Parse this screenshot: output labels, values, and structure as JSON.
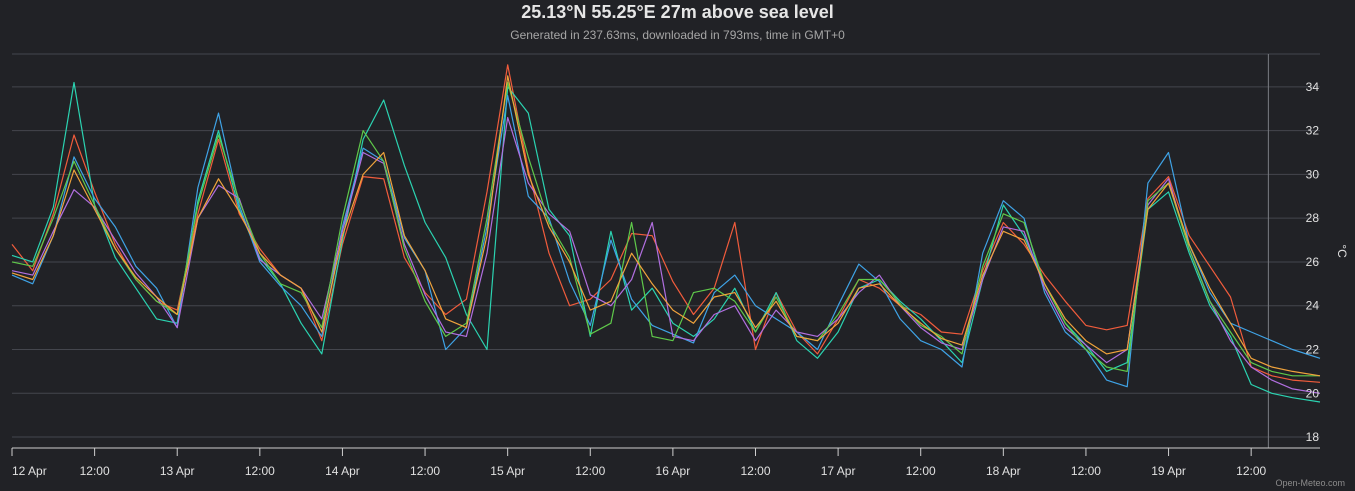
{
  "header": {
    "title": "25.13°N 55.25°E 27m above sea level",
    "subtitle": "Generated in 237.63ms, downloaded in 793ms, time in GMT+0"
  },
  "credit": "Open-Meteo.com",
  "chart_data": {
    "type": "line",
    "x_unit": "hours since 12 Apr 00:00 GMT+0",
    "x_ticks": [
      {
        "x": 0,
        "label": "12 Apr"
      },
      {
        "x": 12,
        "label": "12:00"
      },
      {
        "x": 24,
        "label": "13 Apr"
      },
      {
        "x": 36,
        "label": "12:00"
      },
      {
        "x": 48,
        "label": "14 Apr"
      },
      {
        "x": 60,
        "label": "12:00"
      },
      {
        "x": 72,
        "label": "15 Apr"
      },
      {
        "x": 84,
        "label": "12:00"
      },
      {
        "x": 96,
        "label": "16 Apr"
      },
      {
        "x": 108,
        "label": "12:00"
      },
      {
        "x": 120,
        "label": "17 Apr"
      },
      {
        "x": 132,
        "label": "12:00"
      },
      {
        "x": 144,
        "label": "18 Apr"
      },
      {
        "x": 156,
        "label": "12:00"
      },
      {
        "x": 168,
        "label": "19 Apr"
      },
      {
        "x": 180,
        "label": "12:00"
      }
    ],
    "xlim": [
      0,
      190
    ],
    "now_marker_x": 182.5,
    "yaxis": {
      "position": "right",
      "unit": "°C",
      "ticks": [
        18,
        20,
        22,
        24,
        26,
        28,
        30,
        32,
        34
      ],
      "ylim": [
        17.5,
        35.5
      ]
    },
    "grid": true,
    "legend": "none",
    "series": [
      {
        "color": "#f15c3c",
        "x": [
          0,
          3,
          6,
          9,
          12,
          15,
          18,
          21,
          24,
          27,
          30,
          33,
          36,
          39,
          42,
          45,
          48,
          51,
          54,
          57,
          60,
          63,
          66,
          69,
          72,
          75,
          78,
          81,
          84,
          87,
          90,
          93,
          96,
          99,
          102,
          105,
          108,
          111,
          114,
          117,
          120,
          123,
          126,
          129,
          132,
          135,
          138,
          141,
          144,
          147,
          150,
          153,
          156,
          159,
          162,
          165,
          168,
          171,
          174,
          177,
          180,
          183,
          186,
          190
        ],
        "y": [
          26.8,
          25.6,
          28.2,
          31.8,
          29.2,
          26.8,
          25.2,
          24.2,
          23.8,
          28.2,
          31.6,
          28.2,
          26.6,
          25.4,
          24.8,
          22.4,
          26.8,
          29.9,
          29.8,
          26.2,
          24.6,
          23.6,
          24.3,
          29.2,
          35.0,
          30.2,
          26.4,
          24.0,
          24.3,
          25.2,
          27.3,
          27.2,
          25.1,
          23.6,
          24.8,
          27.8,
          22.0,
          24.6,
          22.8,
          21.8,
          23.4,
          25.2,
          24.8,
          24.0,
          23.6,
          22.8,
          22.7,
          25.6,
          27.8,
          26.8,
          25.4,
          24.2,
          23.1,
          22.9,
          23.1,
          28.9,
          29.9,
          27.2,
          25.8,
          24.4,
          21.2,
          20.8,
          20.6,
          20.5
        ]
      },
      {
        "color": "#2bd3b1",
        "x": [
          0,
          3,
          6,
          9,
          12,
          15,
          18,
          21,
          24,
          27,
          30,
          33,
          36,
          39,
          42,
          45,
          48,
          51,
          54,
          57,
          60,
          63,
          66,
          69,
          72,
          75,
          78,
          81,
          84,
          87,
          90,
          93,
          96,
          99,
          102,
          105,
          108,
          111,
          114,
          117,
          120,
          123,
          126,
          129,
          132,
          135,
          138,
          141,
          144,
          147,
          150,
          153,
          156,
          159,
          162,
          165,
          168,
          171,
          174,
          177,
          180,
          183,
          186,
          190
        ],
        "y": [
          26.3,
          26.0,
          28.5,
          34.2,
          28.6,
          26.2,
          24.8,
          23.4,
          23.2,
          28.8,
          32.0,
          28.4,
          26.2,
          25.0,
          23.2,
          21.8,
          27.0,
          31.6,
          33.4,
          30.4,
          27.8,
          26.2,
          23.6,
          22.0,
          34.0,
          32.8,
          28.4,
          27.2,
          22.6,
          27.4,
          23.8,
          24.8,
          23.2,
          22.6,
          23.4,
          24.8,
          22.8,
          24.6,
          22.4,
          21.6,
          22.8,
          24.8,
          25.2,
          24.2,
          23.4,
          22.4,
          21.4,
          25.2,
          28.6,
          27.2,
          25.0,
          23.2,
          22.2,
          21.0,
          21.4,
          28.4,
          29.2,
          26.4,
          24.0,
          22.6,
          20.4,
          20.0,
          19.8,
          19.6
        ]
      },
      {
        "color": "#3fa3e6",
        "x": [
          0,
          3,
          6,
          9,
          12,
          15,
          18,
          21,
          24,
          27,
          30,
          33,
          36,
          39,
          42,
          45,
          48,
          51,
          54,
          57,
          60,
          63,
          66,
          69,
          72,
          75,
          78,
          81,
          84,
          87,
          90,
          93,
          96,
          99,
          102,
          105,
          108,
          111,
          114,
          117,
          120,
          123,
          126,
          129,
          132,
          135,
          138,
          141,
          144,
          147,
          150,
          153,
          156,
          159,
          162,
          165,
          168,
          171,
          174,
          177,
          180,
          183,
          186,
          190
        ],
        "y": [
          25.4,
          25.0,
          27.2,
          30.8,
          28.9,
          27.6,
          25.8,
          24.8,
          23.0,
          29.4,
          32.8,
          28.6,
          26.0,
          24.9,
          24.0,
          22.6,
          27.6,
          31.2,
          30.6,
          27.1,
          25.6,
          22.0,
          23.0,
          27.6,
          33.6,
          29.0,
          28.0,
          25.1,
          23.1,
          27.0,
          24.3,
          23.1,
          22.7,
          22.3,
          24.6,
          25.4,
          24.0,
          23.4,
          22.8,
          22.0,
          24.0,
          25.9,
          25.1,
          23.4,
          22.4,
          22.0,
          21.2,
          26.4,
          28.8,
          28.0,
          24.6,
          22.8,
          22.0,
          20.6,
          20.3,
          29.6,
          31.0,
          26.8,
          24.6,
          23.2,
          22.8,
          22.4,
          22.0,
          21.6
        ]
      },
      {
        "color": "#b16fe0",
        "x": [
          0,
          3,
          6,
          9,
          12,
          15,
          18,
          21,
          24,
          27,
          30,
          33,
          36,
          39,
          42,
          45,
          48,
          51,
          54,
          57,
          60,
          63,
          66,
          69,
          72,
          75,
          78,
          81,
          84,
          87,
          90,
          93,
          96,
          99,
          102,
          105,
          108,
          111,
          114,
          117,
          120,
          123,
          126,
          129,
          132,
          135,
          138,
          141,
          144,
          147,
          150,
          153,
          156,
          159,
          162,
          165,
          168,
          171,
          174,
          177,
          180,
          183,
          186,
          190
        ],
        "y": [
          25.6,
          25.4,
          27.4,
          29.3,
          28.5,
          27.0,
          25.5,
          24.4,
          23.0,
          28.0,
          29.5,
          28.9,
          26.1,
          25.4,
          24.8,
          23.4,
          27.4,
          31.0,
          30.5,
          26.8,
          24.5,
          22.8,
          22.6,
          26.4,
          32.6,
          29.6,
          28.2,
          27.4,
          24.5,
          24.0,
          25.2,
          27.8,
          22.6,
          22.4,
          23.6,
          24.0,
          22.4,
          23.8,
          22.8,
          22.6,
          23.4,
          24.6,
          25.4,
          24.0,
          23.0,
          22.3,
          22.0,
          25.2,
          27.6,
          27.4,
          24.8,
          23.0,
          22.2,
          21.4,
          22.0,
          28.6,
          29.8,
          26.6,
          24.2,
          22.4,
          21.2,
          20.6,
          20.2,
          20.0
        ]
      },
      {
        "color": "#5fc94a",
        "x": [
          0,
          3,
          6,
          9,
          12,
          15,
          18,
          21,
          24,
          27,
          30,
          33,
          36,
          39,
          42,
          45,
          48,
          51,
          54,
          57,
          60,
          63,
          66,
          69,
          72,
          75,
          78,
          81,
          84,
          87,
          90,
          93,
          96,
          99,
          102,
          105,
          108,
          111,
          114,
          117,
          120,
          123,
          126,
          129,
          132,
          135,
          138,
          141,
          144,
          147,
          150,
          153,
          156,
          159,
          162,
          165,
          168,
          171,
          174,
          177,
          180,
          183,
          186,
          190
        ],
        "y": [
          26.0,
          25.8,
          28.0,
          30.6,
          28.6,
          26.6,
          25.2,
          24.2,
          23.6,
          28.6,
          31.8,
          28.8,
          26.4,
          25.0,
          24.6,
          23.0,
          28.0,
          32.0,
          30.6,
          26.6,
          24.2,
          22.6,
          23.2,
          28.0,
          34.2,
          30.8,
          27.8,
          26.2,
          22.7,
          23.2,
          27.8,
          22.6,
          22.4,
          24.6,
          24.8,
          24.2,
          22.8,
          24.4,
          22.6,
          22.4,
          23.6,
          25.2,
          25.2,
          24.1,
          23.1,
          22.6,
          21.8,
          25.8,
          28.2,
          27.8,
          25.0,
          23.2,
          22.0,
          21.2,
          21.0,
          28.8,
          29.6,
          26.6,
          24.2,
          22.8,
          21.4,
          21.0,
          20.8,
          20.8
        ]
      },
      {
        "color": "#f0a33c",
        "x": [
          0,
          3,
          6,
          9,
          12,
          15,
          18,
          21,
          24,
          27,
          30,
          33,
          36,
          39,
          42,
          45,
          48,
          51,
          54,
          57,
          60,
          63,
          66,
          69,
          72,
          75,
          78,
          81,
          84,
          87,
          90,
          93,
          96,
          99,
          102,
          105,
          108,
          111,
          114,
          117,
          120,
          123,
          126,
          129,
          132,
          135,
          138,
          141,
          144,
          147,
          150,
          153,
          156,
          159,
          162,
          165,
          168,
          171,
          174,
          177,
          180,
          183,
          186,
          190
        ],
        "y": [
          25.5,
          25.2,
          27.2,
          30.2,
          28.4,
          26.6,
          25.3,
          24.4,
          23.6,
          28.0,
          29.8,
          28.3,
          26.4,
          25.4,
          24.8,
          22.8,
          27.2,
          30.0,
          31.0,
          27.2,
          25.6,
          23.4,
          23.0,
          27.2,
          34.5,
          30.0,
          27.6,
          26.0,
          23.8,
          24.2,
          26.4,
          25.0,
          23.8,
          23.2,
          24.4,
          24.6,
          23.0,
          24.2,
          22.6,
          22.4,
          23.2,
          24.8,
          25.0,
          24.0,
          23.2,
          22.5,
          22.2,
          25.4,
          27.4,
          27.0,
          25.0,
          23.4,
          22.4,
          21.8,
          22.0,
          28.4,
          29.6,
          26.8,
          24.8,
          23.2,
          21.6,
          21.2,
          21.0,
          20.8
        ]
      }
    ]
  }
}
